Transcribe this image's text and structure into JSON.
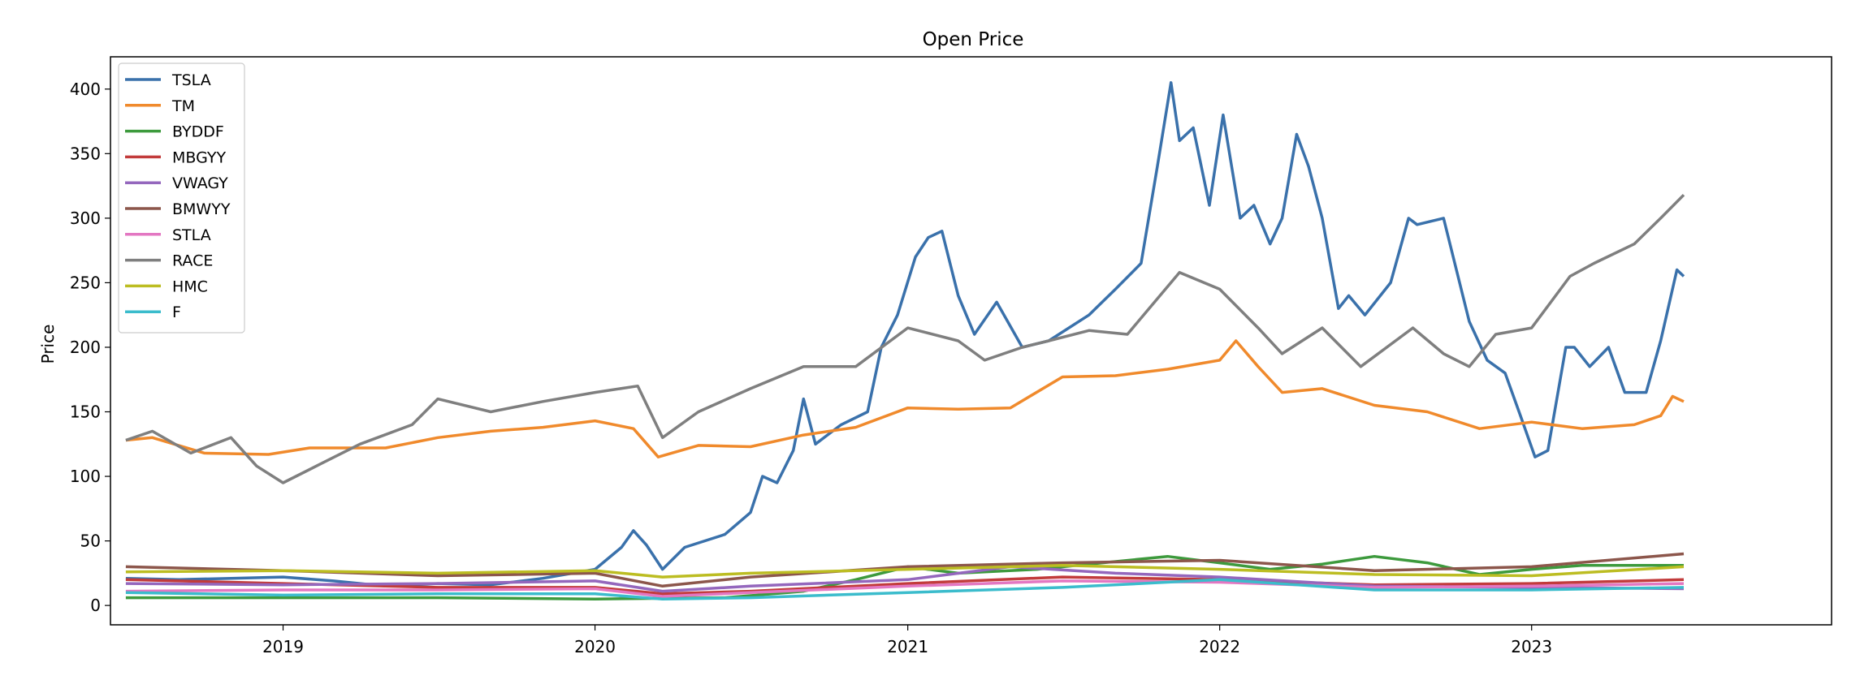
{
  "chart_data": {
    "type": "line",
    "title": "Open Price",
    "xlabel": "",
    "ylabel": "Price",
    "xlim": [
      "2018-06-13",
      "2023-12-18"
    ],
    "ylim": [
      -15,
      425
    ],
    "x_ticks": [
      "2019",
      "2020",
      "2021",
      "2022",
      "2023"
    ],
    "y_ticks": [
      0,
      50,
      100,
      150,
      200,
      250,
      300,
      350,
      400
    ],
    "grid": false,
    "legend_position": "upper left",
    "series": [
      {
        "name": "TSLA",
        "color": "#3a71ab",
        "points": [
          [
            "2018-07-01",
            21
          ],
          [
            "2018-09-01",
            20
          ],
          [
            "2018-11-01",
            21
          ],
          [
            "2019-01-01",
            22
          ],
          [
            "2019-03-01",
            19
          ],
          [
            "2019-05-01",
            15
          ],
          [
            "2019-07-01",
            17
          ],
          [
            "2019-09-01",
            16
          ],
          [
            "2019-11-01",
            21
          ],
          [
            "2020-01-01",
            28
          ],
          [
            "2020-02-01",
            45
          ],
          [
            "2020-02-15",
            58
          ],
          [
            "2020-03-01",
            47
          ],
          [
            "2020-03-20",
            28
          ],
          [
            "2020-04-15",
            45
          ],
          [
            "2020-06-01",
            55
          ],
          [
            "2020-07-01",
            72
          ],
          [
            "2020-07-15",
            100
          ],
          [
            "2020-08-01",
            95
          ],
          [
            "2020-08-20",
            120
          ],
          [
            "2020-09-01",
            160
          ],
          [
            "2020-09-15",
            125
          ],
          [
            "2020-10-15",
            140
          ],
          [
            "2020-11-15",
            150
          ],
          [
            "2020-12-01",
            200
          ],
          [
            "2020-12-20",
            225
          ],
          [
            "2021-01-10",
            270
          ],
          [
            "2021-01-25",
            285
          ],
          [
            "2021-02-10",
            290
          ],
          [
            "2021-03-01",
            240
          ],
          [
            "2021-03-20",
            210
          ],
          [
            "2021-04-15",
            235
          ],
          [
            "2021-05-15",
            200
          ],
          [
            "2021-06-15",
            205
          ],
          [
            "2021-08-01",
            225
          ],
          [
            "2021-09-01",
            245
          ],
          [
            "2021-10-01",
            265
          ],
          [
            "2021-10-20",
            340
          ],
          [
            "2021-11-05",
            405
          ],
          [
            "2021-11-15",
            360
          ],
          [
            "2021-12-01",
            370
          ],
          [
            "2021-12-20",
            310
          ],
          [
            "2022-01-05",
            380
          ],
          [
            "2022-01-25",
            300
          ],
          [
            "2022-02-10",
            310
          ],
          [
            "2022-03-01",
            280
          ],
          [
            "2022-03-15",
            300
          ],
          [
            "2022-04-01",
            365
          ],
          [
            "2022-04-15",
            340
          ],
          [
            "2022-05-01",
            300
          ],
          [
            "2022-05-20",
            230
          ],
          [
            "2022-06-01",
            240
          ],
          [
            "2022-06-20",
            225
          ],
          [
            "2022-07-20",
            250
          ],
          [
            "2022-08-10",
            300
          ],
          [
            "2022-08-20",
            295
          ],
          [
            "2022-09-20",
            300
          ],
          [
            "2022-10-20",
            220
          ],
          [
            "2022-11-10",
            190
          ],
          [
            "2022-12-01",
            180
          ],
          [
            "2022-12-20",
            145
          ],
          [
            "2023-01-05",
            115
          ],
          [
            "2023-01-20",
            120
          ],
          [
            "2023-02-10",
            200
          ],
          [
            "2023-02-20",
            200
          ],
          [
            "2023-03-10",
            185
          ],
          [
            "2023-04-01",
            200
          ],
          [
            "2023-04-20",
            165
          ],
          [
            "2023-05-15",
            165
          ],
          [
            "2023-06-01",
            205
          ],
          [
            "2023-06-20",
            260
          ],
          [
            "2023-06-28",
            255
          ]
        ]
      },
      {
        "name": "TM",
        "color": "#f08a2c",
        "points": [
          [
            "2018-07-01",
            128
          ],
          [
            "2018-08-01",
            130
          ],
          [
            "2018-10-01",
            118
          ],
          [
            "2018-12-15",
            117
          ],
          [
            "2019-02-01",
            122
          ],
          [
            "2019-05-01",
            122
          ],
          [
            "2019-07-01",
            130
          ],
          [
            "2019-09-01",
            135
          ],
          [
            "2019-11-01",
            138
          ],
          [
            "2020-01-01",
            143
          ],
          [
            "2020-02-15",
            137
          ],
          [
            "2020-03-15",
            115
          ],
          [
            "2020-05-01",
            124
          ],
          [
            "2020-07-01",
            123
          ],
          [
            "2020-09-01",
            132
          ],
          [
            "2020-11-01",
            138
          ],
          [
            "2021-01-01",
            153
          ],
          [
            "2021-03-01",
            152
          ],
          [
            "2021-05-01",
            153
          ],
          [
            "2021-07-01",
            177
          ],
          [
            "2021-09-01",
            178
          ],
          [
            "2021-11-01",
            183
          ],
          [
            "2022-01-01",
            190
          ],
          [
            "2022-01-20",
            205
          ],
          [
            "2022-02-15",
            185
          ],
          [
            "2022-03-15",
            165
          ],
          [
            "2022-05-01",
            168
          ],
          [
            "2022-07-01",
            155
          ],
          [
            "2022-09-01",
            150
          ],
          [
            "2022-11-01",
            137
          ],
          [
            "2023-01-01",
            142
          ],
          [
            "2023-03-01",
            137
          ],
          [
            "2023-05-01",
            140
          ],
          [
            "2023-06-01",
            147
          ],
          [
            "2023-06-15",
            162
          ],
          [
            "2023-06-28",
            158
          ]
        ]
      },
      {
        "name": "BYDDF",
        "color": "#3d9a3d",
        "points": [
          [
            "2018-07-01",
            6
          ],
          [
            "2019-01-01",
            6
          ],
          [
            "2019-07-01",
            6
          ],
          [
            "2020-01-01",
            5
          ],
          [
            "2020-06-01",
            6
          ],
          [
            "2020-09-01",
            11
          ],
          [
            "2020-11-01",
            20
          ],
          [
            "2021-01-01",
            30
          ],
          [
            "2021-03-01",
            25
          ],
          [
            "2021-06-01",
            28
          ],
          [
            "2021-08-01",
            32
          ],
          [
            "2021-11-01",
            38
          ],
          [
            "2022-01-01",
            33
          ],
          [
            "2022-03-01",
            28
          ],
          [
            "2022-05-01",
            32
          ],
          [
            "2022-07-01",
            38
          ],
          [
            "2022-09-01",
            33
          ],
          [
            "2022-11-01",
            24
          ],
          [
            "2023-01-01",
            28
          ],
          [
            "2023-03-01",
            31
          ],
          [
            "2023-06-28",
            31
          ]
        ]
      },
      {
        "name": "MBGYY",
        "color": "#c23b3b",
        "points": [
          [
            "2018-07-01",
            20
          ],
          [
            "2019-01-01",
            17
          ],
          [
            "2019-07-01",
            14
          ],
          [
            "2020-01-01",
            14
          ],
          [
            "2020-03-20",
            9
          ],
          [
            "2020-07-01",
            11
          ],
          [
            "2021-01-01",
            17
          ],
          [
            "2021-07-01",
            22
          ],
          [
            "2022-01-01",
            20
          ],
          [
            "2022-07-01",
            16
          ],
          [
            "2023-01-01",
            17
          ],
          [
            "2023-06-28",
            20
          ]
        ]
      },
      {
        "name": "VWAGY",
        "color": "#9467bd",
        "points": [
          [
            "2018-07-01",
            17
          ],
          [
            "2019-01-01",
            16
          ],
          [
            "2019-07-01",
            17
          ],
          [
            "2020-01-01",
            19
          ],
          [
            "2020-03-20",
            11
          ],
          [
            "2020-07-01",
            15
          ],
          [
            "2021-01-01",
            20
          ],
          [
            "2021-05-01",
            30
          ],
          [
            "2021-09-01",
            25
          ],
          [
            "2022-01-01",
            22
          ],
          [
            "2022-07-01",
            15
          ],
          [
            "2023-01-01",
            14
          ],
          [
            "2023-06-28",
            13
          ]
        ]
      },
      {
        "name": "BMWYY",
        "color": "#8c564b",
        "points": [
          [
            "2018-07-01",
            30
          ],
          [
            "2019-01-01",
            27
          ],
          [
            "2019-07-01",
            23
          ],
          [
            "2020-01-01",
            25
          ],
          [
            "2020-03-20",
            15
          ],
          [
            "2020-07-01",
            22
          ],
          [
            "2021-01-01",
            30
          ],
          [
            "2021-07-01",
            33
          ],
          [
            "2022-01-01",
            35
          ],
          [
            "2022-07-01",
            27
          ],
          [
            "2023-01-01",
            30
          ],
          [
            "2023-06-28",
            40
          ]
        ]
      },
      {
        "name": "STLA",
        "color": "#e377c2",
        "points": [
          [
            "2018-07-01",
            11
          ],
          [
            "2019-01-01",
            12
          ],
          [
            "2019-07-01",
            12
          ],
          [
            "2020-01-01",
            13
          ],
          [
            "2020-03-20",
            7
          ],
          [
            "2020-07-01",
            10
          ],
          [
            "2021-01-01",
            15
          ],
          [
            "2021-07-01",
            19
          ],
          [
            "2022-01-01",
            18
          ],
          [
            "2022-07-01",
            14
          ],
          [
            "2023-01-01",
            15
          ],
          [
            "2023-06-28",
            17
          ]
        ]
      },
      {
        "name": "RACE",
        "color": "#7f7f7f",
        "points": [
          [
            "2018-07-01",
            128
          ],
          [
            "2018-08-01",
            135
          ],
          [
            "2018-09-15",
            118
          ],
          [
            "2018-11-01",
            130
          ],
          [
            "2018-12-01",
            108
          ],
          [
            "2019-01-01",
            95
          ],
          [
            "2019-02-15",
            110
          ],
          [
            "2019-04-01",
            125
          ],
          [
            "2019-06-01",
            140
          ],
          [
            "2019-07-01",
            160
          ],
          [
            "2019-09-01",
            150
          ],
          [
            "2019-11-01",
            158
          ],
          [
            "2020-01-01",
            165
          ],
          [
            "2020-02-20",
            170
          ],
          [
            "2020-03-20",
            130
          ],
          [
            "2020-05-01",
            150
          ],
          [
            "2020-07-01",
            168
          ],
          [
            "2020-09-01",
            185
          ],
          [
            "2020-11-01",
            185
          ],
          [
            "2021-01-01",
            215
          ],
          [
            "2021-03-01",
            205
          ],
          [
            "2021-04-01",
            190
          ],
          [
            "2021-05-15",
            200
          ],
          [
            "2021-06-15",
            205
          ],
          [
            "2021-08-01",
            213
          ],
          [
            "2021-09-15",
            210
          ],
          [
            "2021-11-15",
            258
          ],
          [
            "2022-01-01",
            245
          ],
          [
            "2022-02-15",
            215
          ],
          [
            "2022-03-15",
            195
          ],
          [
            "2022-05-01",
            215
          ],
          [
            "2022-06-15",
            185
          ],
          [
            "2022-08-15",
            215
          ],
          [
            "2022-09-20",
            195
          ],
          [
            "2022-10-20",
            185
          ],
          [
            "2022-11-20",
            210
          ],
          [
            "2023-01-01",
            215
          ],
          [
            "2023-02-15",
            255
          ],
          [
            "2023-03-15",
            265
          ],
          [
            "2023-05-01",
            280
          ],
          [
            "2023-06-01",
            300
          ],
          [
            "2023-06-28",
            318
          ]
        ]
      },
      {
        "name": "HMC",
        "color": "#bcbd22",
        "points": [
          [
            "2018-07-01",
            26
          ],
          [
            "2019-01-01",
            27
          ],
          [
            "2019-07-01",
            25
          ],
          [
            "2020-01-01",
            27
          ],
          [
            "2020-03-20",
            22
          ],
          [
            "2020-07-01",
            25
          ],
          [
            "2021-01-01",
            28
          ],
          [
            "2021-07-01",
            31
          ],
          [
            "2022-01-01",
            28
          ],
          [
            "2022-07-01",
            24
          ],
          [
            "2023-01-01",
            23
          ],
          [
            "2023-06-28",
            30
          ]
        ]
      },
      {
        "name": "F",
        "color": "#3bbccc",
        "points": [
          [
            "2018-07-01",
            10
          ],
          [
            "2019-01-01",
            8
          ],
          [
            "2019-07-01",
            9
          ],
          [
            "2020-01-01",
            9
          ],
          [
            "2020-03-20",
            5
          ],
          [
            "2020-07-01",
            6
          ],
          [
            "2021-01-01",
            10
          ],
          [
            "2021-07-01",
            14
          ],
          [
            "2022-01-01",
            20
          ],
          [
            "2022-07-01",
            12
          ],
          [
            "2023-01-01",
            12
          ],
          [
            "2023-06-28",
            14
          ]
        ]
      }
    ]
  }
}
